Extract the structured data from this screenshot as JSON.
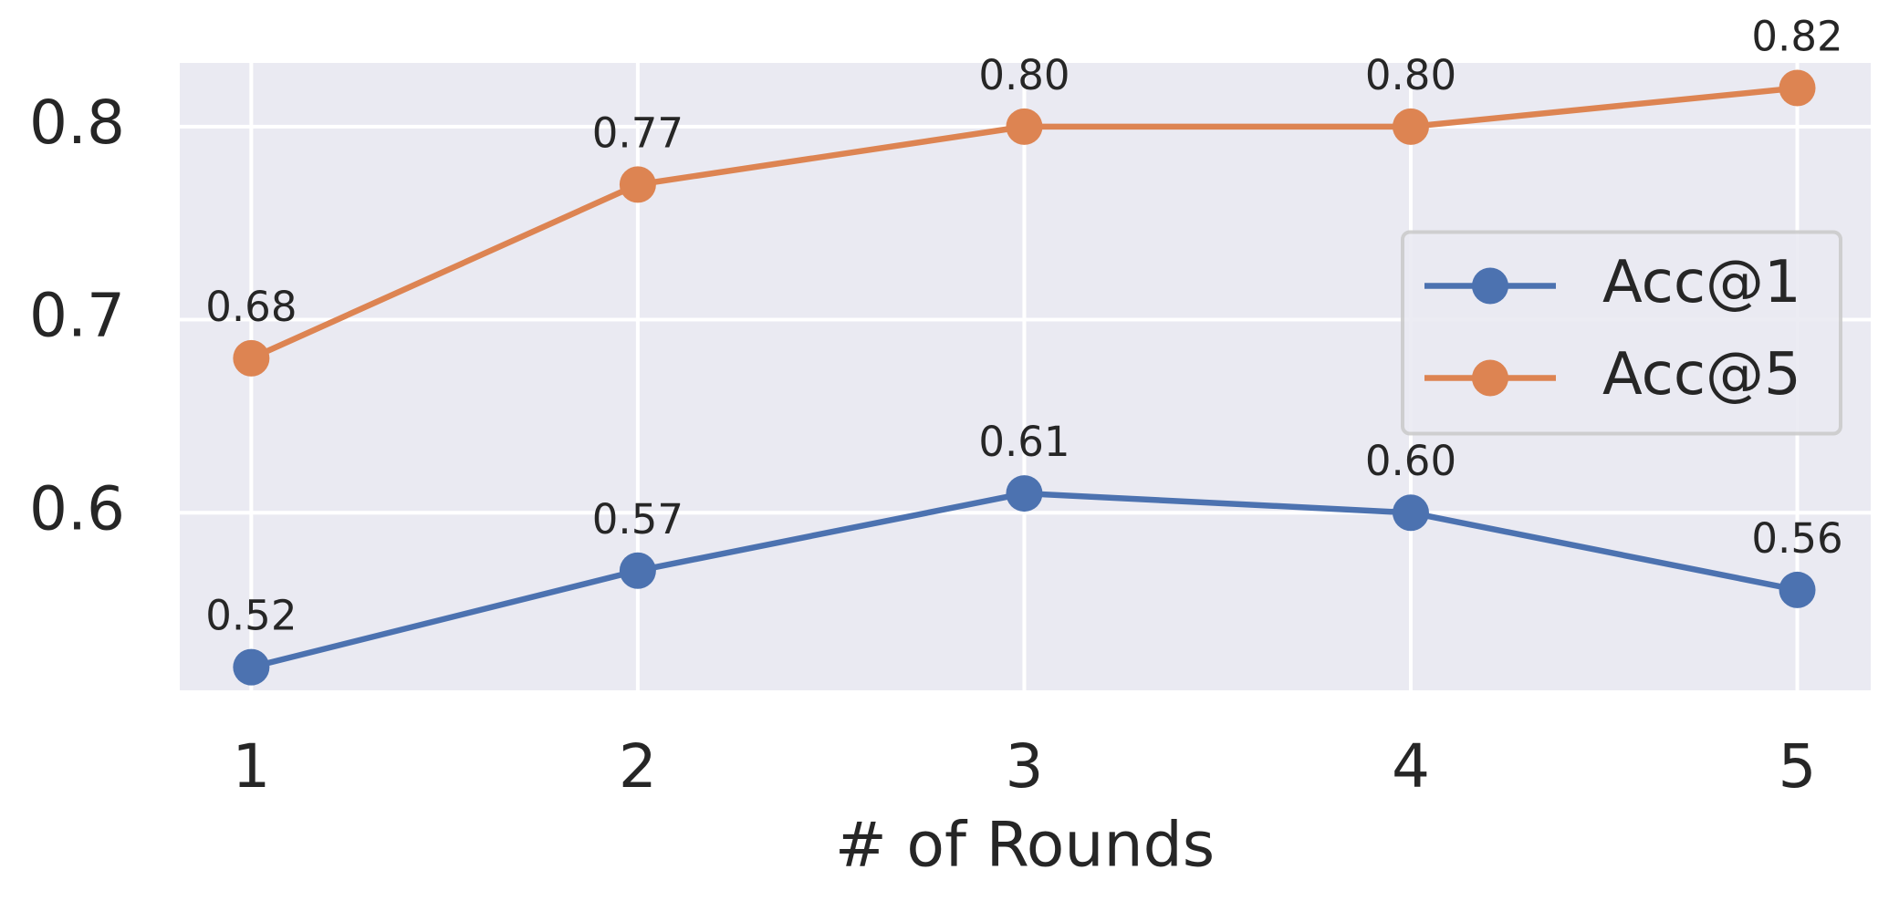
{
  "chart_data": {
    "type": "line",
    "x_label": "# of Rounds",
    "x": [
      1,
      2,
      3,
      4,
      5
    ],
    "xlim": [
      0.815,
      5.19
    ],
    "xticks": [
      1,
      2,
      3,
      4,
      5
    ],
    "ylim": [
      0.508,
      0.833
    ],
    "yticks": [
      0.6,
      0.7,
      0.8
    ],
    "grid": true,
    "legend": "center right",
    "series": [
      {
        "name": "Acc@1",
        "color": "#4c72b0",
        "values": [
          0.52,
          0.57,
          0.61,
          0.6,
          0.56
        ],
        "value_labels": [
          "0.52",
          "0.57",
          "0.61",
          "0.60",
          "0.56"
        ]
      },
      {
        "name": "Acc@5",
        "color": "#dd8452",
        "values": [
          0.68,
          0.77,
          0.8,
          0.8,
          0.82
        ],
        "value_labels": [
          "0.68",
          "0.77",
          "0.80",
          "0.80",
          "0.82"
        ]
      }
    ]
  }
}
